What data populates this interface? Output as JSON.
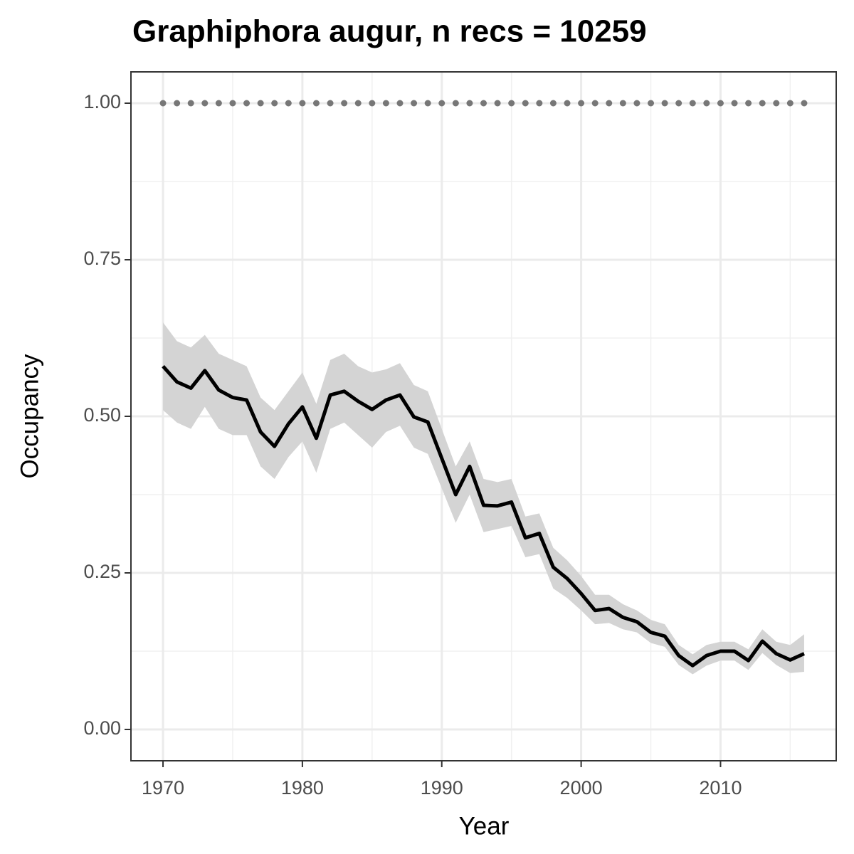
{
  "chart_data": {
    "type": "line",
    "title": "Graphiphora augur, n recs = 10259",
    "x_label": "Year",
    "y_label": "Occupancy",
    "x": [
      1970,
      1971,
      1972,
      1973,
      1974,
      1975,
      1976,
      1977,
      1978,
      1979,
      1980,
      1981,
      1982,
      1983,
      1984,
      1985,
      1986,
      1987,
      1988,
      1989,
      1990,
      1991,
      1992,
      1993,
      1994,
      1995,
      1996,
      1997,
      1998,
      1999,
      2000,
      2001,
      2002,
      2003,
      2004,
      2005,
      2006,
      2007,
      2008,
      2009,
      2010,
      2011,
      2012,
      2013,
      2014,
      2015,
      2016
    ],
    "series": [
      {
        "color": "#000000",
        "band_color": "#d4d4d4",
        "values": [
          0.58,
          0.555,
          0.545,
          0.573,
          0.542,
          0.53,
          0.526,
          0.475,
          0.452,
          0.488,
          0.515,
          0.465,
          0.534,
          0.54,
          0.524,
          0.511,
          0.526,
          0.534,
          0.499,
          0.491,
          0.433,
          0.375,
          0.42,
          0.358,
          0.357,
          0.363,
          0.306,
          0.313,
          0.259,
          0.241,
          0.217,
          0.19,
          0.193,
          0.179,
          0.172,
          0.155,
          0.149,
          0.118,
          0.102,
          0.118,
          0.125,
          0.125,
          0.11,
          0.141,
          0.121,
          0.111,
          0.121
        ],
        "upper": [
          0.65,
          0.62,
          0.61,
          0.63,
          0.6,
          0.59,
          0.58,
          0.53,
          0.51,
          0.54,
          0.57,
          0.52,
          0.59,
          0.6,
          0.58,
          0.57,
          0.575,
          0.585,
          0.55,
          0.54,
          0.48,
          0.42,
          0.46,
          0.4,
          0.395,
          0.4,
          0.34,
          0.345,
          0.29,
          0.27,
          0.245,
          0.215,
          0.215,
          0.2,
          0.19,
          0.175,
          0.168,
          0.135,
          0.12,
          0.135,
          0.14,
          0.14,
          0.128,
          0.16,
          0.14,
          0.135,
          0.152
        ],
        "lower": [
          0.51,
          0.49,
          0.48,
          0.515,
          0.48,
          0.47,
          0.47,
          0.42,
          0.4,
          0.435,
          0.46,
          0.41,
          0.48,
          0.49,
          0.47,
          0.45,
          0.475,
          0.485,
          0.45,
          0.44,
          0.385,
          0.33,
          0.375,
          0.315,
          0.32,
          0.325,
          0.275,
          0.28,
          0.225,
          0.21,
          0.19,
          0.168,
          0.17,
          0.16,
          0.155,
          0.138,
          0.132,
          0.103,
          0.088,
          0.102,
          0.11,
          0.11,
          0.095,
          0.122,
          0.103,
          0.09,
          0.092
        ]
      }
    ],
    "reference_line": 1,
    "reference_color": "#777777",
    "xlim": [
      1967.7,
      2018.3
    ],
    "ylim": [
      -0.05,
      1.05
    ],
    "xticks": [
      1970,
      1980,
      1990,
      2000,
      2010
    ],
    "yticks": [
      {
        "value": 0,
        "label": "0.00"
      },
      {
        "value": 0.25,
        "label": "0.25"
      },
      {
        "value": 0.5,
        "label": "0.50"
      },
      {
        "value": 0.75,
        "label": "0.75"
      },
      {
        "value": 1,
        "label": "1.00"
      }
    ],
    "grid": true
  }
}
